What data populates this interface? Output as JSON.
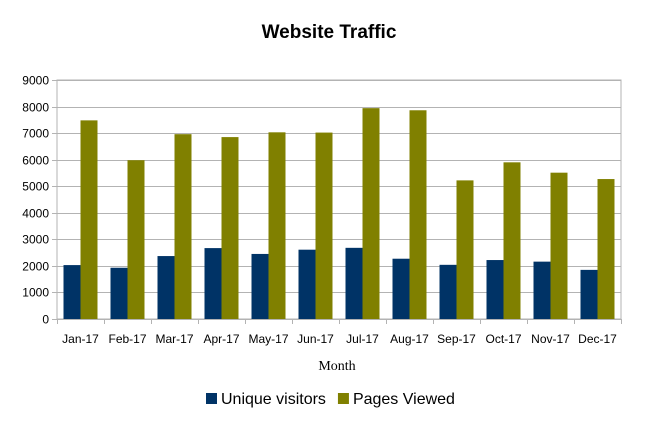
{
  "chart_data": {
    "type": "bar",
    "title": "Website Traffic",
    "xlabel": "Month",
    "ylabel": "",
    "ylim": [
      0,
      9000
    ],
    "yticks": [
      0,
      1000,
      2000,
      3000,
      4000,
      5000,
      6000,
      7000,
      8000,
      9000
    ],
    "grid": true,
    "legend_position": "bottom",
    "categories": [
      "Jan-17",
      "Feb-17",
      "Mar-17",
      "Apr-17",
      "May-17",
      "Jun-17",
      "Jul-17",
      "Aug-17",
      "Sep-17",
      "Oct-17",
      "Nov-17",
      "Dec-17"
    ],
    "series": [
      {
        "name": "Unique visitors",
        "color": "#003366",
        "values": [
          2030,
          1930,
          2370,
          2670,
          2450,
          2610,
          2680,
          2270,
          2040,
          2220,
          2160,
          1850
        ]
      },
      {
        "name": "Pages Viewed",
        "color": "#808000",
        "values": [
          7480,
          5980,
          6960,
          6850,
          7030,
          7020,
          7940,
          7860,
          5220,
          5900,
          5510,
          5270
        ]
      }
    ]
  }
}
